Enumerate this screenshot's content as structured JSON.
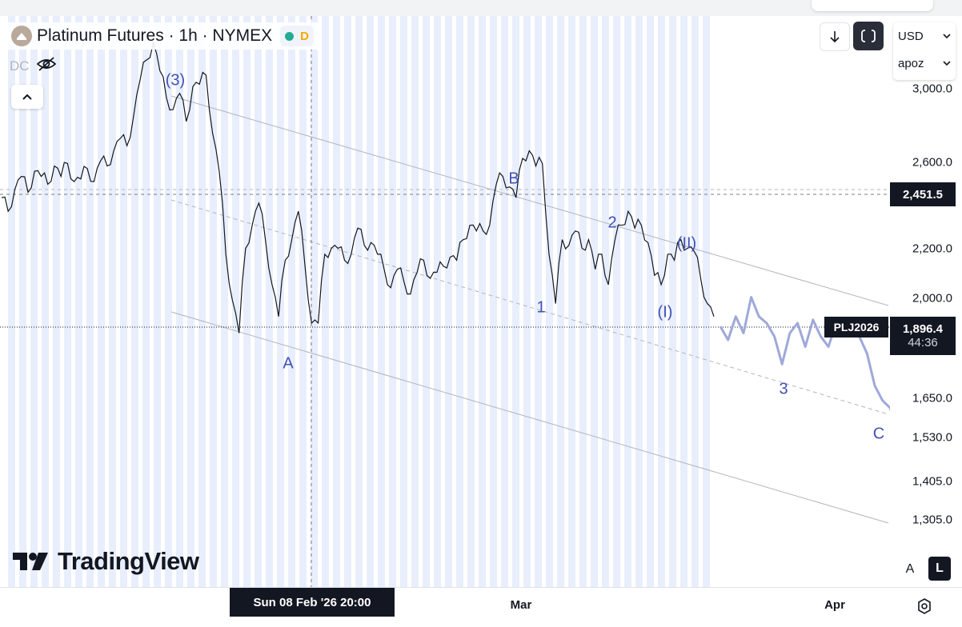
{
  "legend": {
    "title": "Platinum Futures · 1h · NYMEX",
    "status_badge": "D",
    "dc_label": "DC"
  },
  "toolbar": {
    "currency": "USD",
    "user_label": "apoz"
  },
  "price_axis": {
    "labels": [
      "3,000.0",
      "2,600.0",
      "2,451.5",
      "2,200.0",
      "2,000.0",
      "1,896.4",
      "1,650.0",
      "1,530.0",
      "1,405.0",
      "1,305.0"
    ],
    "ticks": [
      {
        "label": "3,000.0",
        "value": 3000
      },
      {
        "label": "2,600.0",
        "value": 2600
      },
      {
        "label": "2,200.0",
        "value": 2200
      },
      {
        "label": "2,000.0",
        "value": 2000
      },
      {
        "label": "1,650.0",
        "value": 1650
      },
      {
        "label": "1,530.0",
        "value": 1530
      },
      {
        "label": "1,405.0",
        "value": 1405
      },
      {
        "label": "1,305.0",
        "value": 1305
      }
    ]
  },
  "crosshair_price": "2,451.5",
  "current": {
    "symbol": "PLJ2026",
    "price": "1,896.4",
    "countdown": "44:36"
  },
  "time_axis": {
    "cursor_label": "Sun 08 Feb '26   20:00",
    "labels": [
      "Mar",
      "Apr"
    ]
  },
  "wave_labels": [
    "(3)",
    "A",
    "B",
    "1",
    "2",
    "(I)",
    "(II)",
    "3",
    "C"
  ],
  "scale_buttons": {
    "auto": "A",
    "log": "L"
  },
  "brand": "TradingView",
  "colors": {
    "candle": "#131722",
    "wave_label": "#3f51b5",
    "projection": "#9fa8da",
    "session_band": "#e8eefc",
    "status_dot": "#22ab94",
    "badge": "#f7a600"
  },
  "chart_data": {
    "type": "line",
    "symbol": "PLJ2026",
    "interval": "1h",
    "exchange": "NYMEX",
    "y_scale": "log",
    "ylim": [
      1230,
      3080
    ],
    "series": [
      {
        "values": [
          2300,
          2250,
          2330,
          2380,
          2320,
          2400,
          2380,
          2350,
          2420,
          2380,
          2430,
          2360,
          2370,
          2410,
          2360,
          2440,
          2420,
          2480,
          2530,
          2500,
          2620,
          2780,
          2870,
          2950,
          2820,
          2700,
          2650,
          2720,
          2600,
          2750,
          2760,
          2800,
          2550,
          2400,
          2100,
          1950,
          1850,
          2120,
          2200,
          2280,
          2150,
          2000,
          1900,
          2080,
          2150,
          2250,
          2060,
          1880,
          1880,
          2100,
          2120,
          2120,
          2080,
          2100,
          2190,
          2130,
          2140,
          2100,
          2050,
          1990,
          2050,
          2010,
          1970,
          2040,
          2080,
          2020,
          2040,
          2060,
          2090,
          2080,
          2150,
          2200,
          2180,
          2180,
          2200,
          2350,
          2380,
          2340,
          2300,
          2450,
          2480,
          2420,
          2430,
          2100,
          1940,
          2150,
          2130,
          2180,
          2120,
          2150,
          2050,
          2100,
          2000,
          2150,
          2200,
          2250,
          2190,
          2200,
          2140,
          2030,
          2000,
          2100,
          2080,
          2150,
          2120,
          2110,
          2020,
          1940,
          1900
        ]
      }
    ],
    "projection": [
      1870,
      1830,
      1900,
      1850,
      1960,
      1900,
      1880,
      1840,
      1760,
      1850,
      1880,
      1810,
      1890,
      1840,
      1810,
      1880,
      1850,
      1850,
      1840,
      1790,
      1700,
      1660,
      1640,
      1560
    ]
  }
}
